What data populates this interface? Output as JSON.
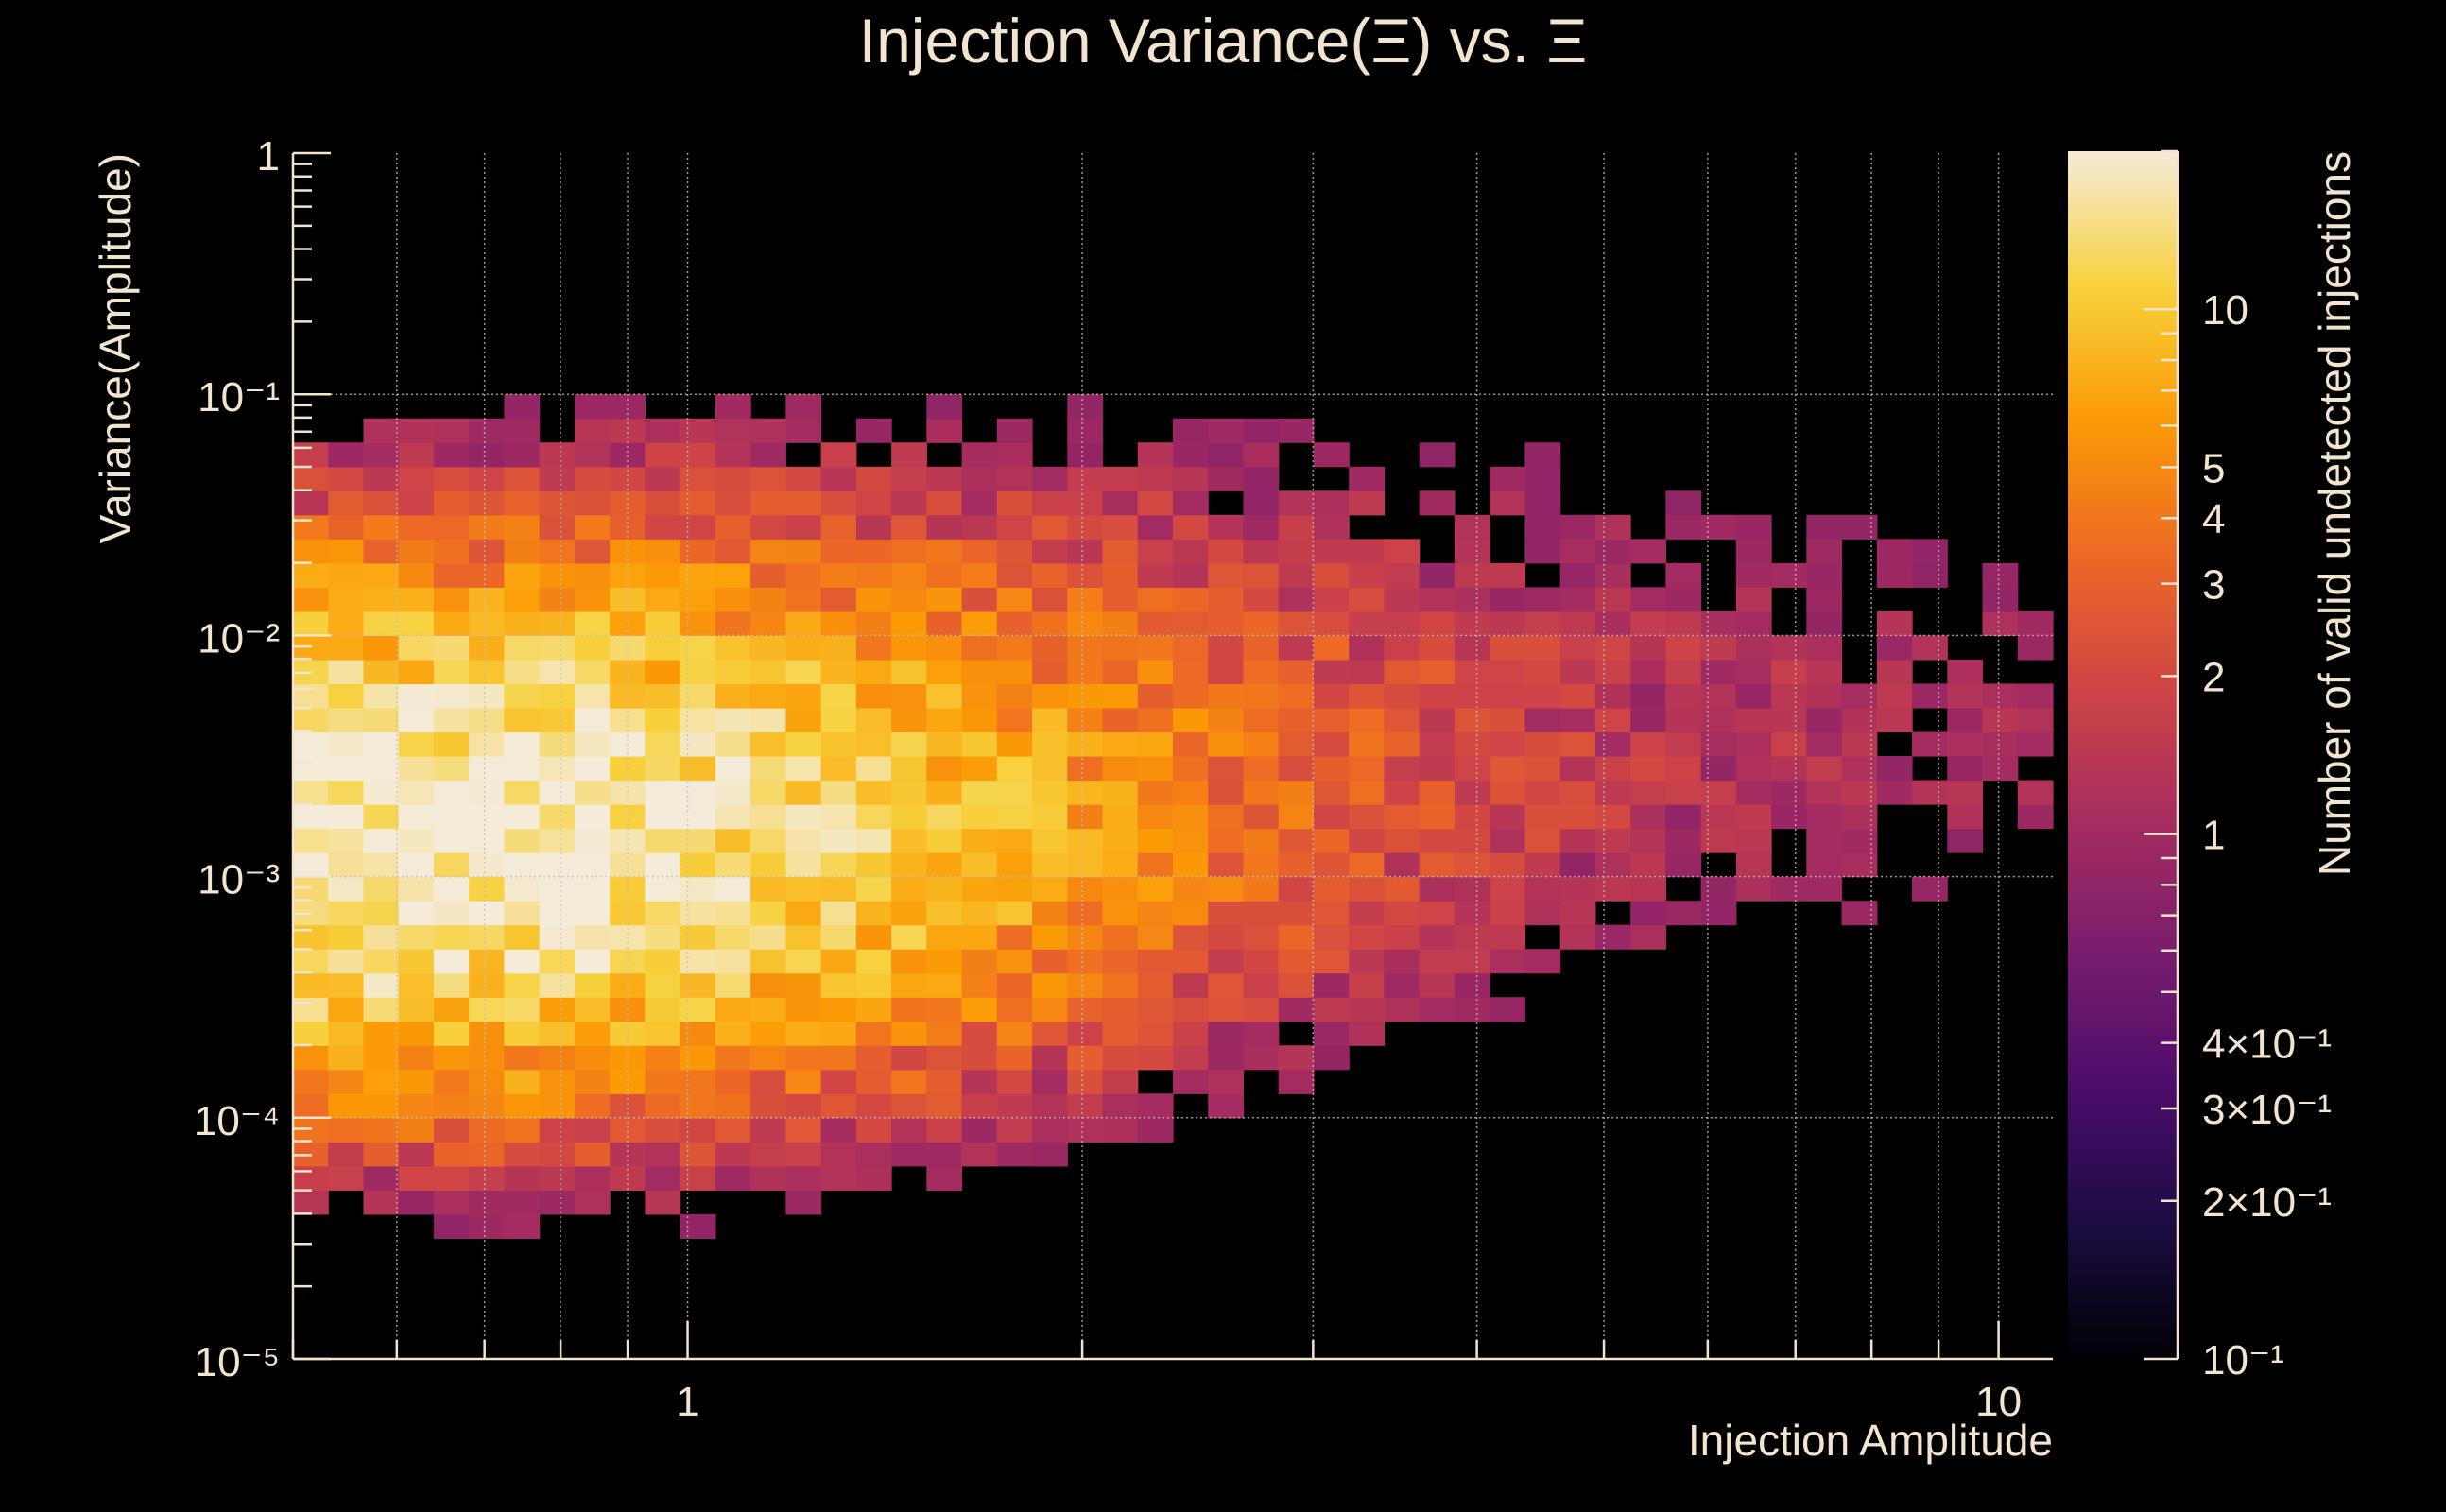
{
  "chart_data": {
    "type": "heatmap",
    "title": "Injection Variance(Ξ) vs. Ξ",
    "xlabel": "Injection Amplitude",
    "ylabel": "Variance(Amplitude)",
    "zlabel": "Number of valid undetected injections",
    "x_scale": "log",
    "y_scale": "log",
    "z_scale": "log",
    "xlim": [
      0.5,
      11
    ],
    "ylim": [
      1e-05,
      1
    ],
    "zlim": [
      0.1,
      20
    ],
    "x_tick_labels": [
      {
        "value": 1,
        "label": "1"
      },
      {
        "value": 10,
        "label": "10"
      }
    ],
    "y_tick_labels": [
      {
        "value": 1,
        "label": "1"
      },
      {
        "value": 0.1,
        "label": "10⁻¹"
      },
      {
        "value": 0.01,
        "label": "10⁻²"
      },
      {
        "value": 0.001,
        "label": "10⁻³"
      },
      {
        "value": 0.0001,
        "label": "10⁻⁴"
      },
      {
        "value": 1e-05,
        "label": "10⁻⁵"
      }
    ],
    "z_tick_labels": [
      {
        "value": 10,
        "label": "10"
      },
      {
        "value": 5,
        "label": "5"
      },
      {
        "value": 4,
        "label": "4"
      },
      {
        "value": 3,
        "label": "3"
      },
      {
        "value": 2,
        "label": "2"
      },
      {
        "value": 1,
        "label": "1"
      },
      {
        "value": 0.4,
        "label": "4×10⁻¹"
      },
      {
        "value": 0.3,
        "label": "3×10⁻¹"
      },
      {
        "value": 0.2,
        "label": "2×10⁻¹"
      },
      {
        "value": 0.1,
        "label": "10⁻¹"
      }
    ],
    "grid": true,
    "colormap": [
      "#000004",
      "#1b0c41",
      "#4a0c6b",
      "#781c6d",
      "#a52c60",
      "#cf4446",
      "#ed6925",
      "#fb9b06",
      "#f7d13d",
      "#f5ebd9"
    ],
    "bins": {
      "nx": 50,
      "ny": 50,
      "x_range": [
        0.5,
        11
      ],
      "y_range": [
        1e-05,
        1
      ]
    },
    "z_description": "counts concentrated between amplitude 0.5–1.8 and variance 3e-4–3e-3, peak ≈20",
    "peak_count": 20
  }
}
